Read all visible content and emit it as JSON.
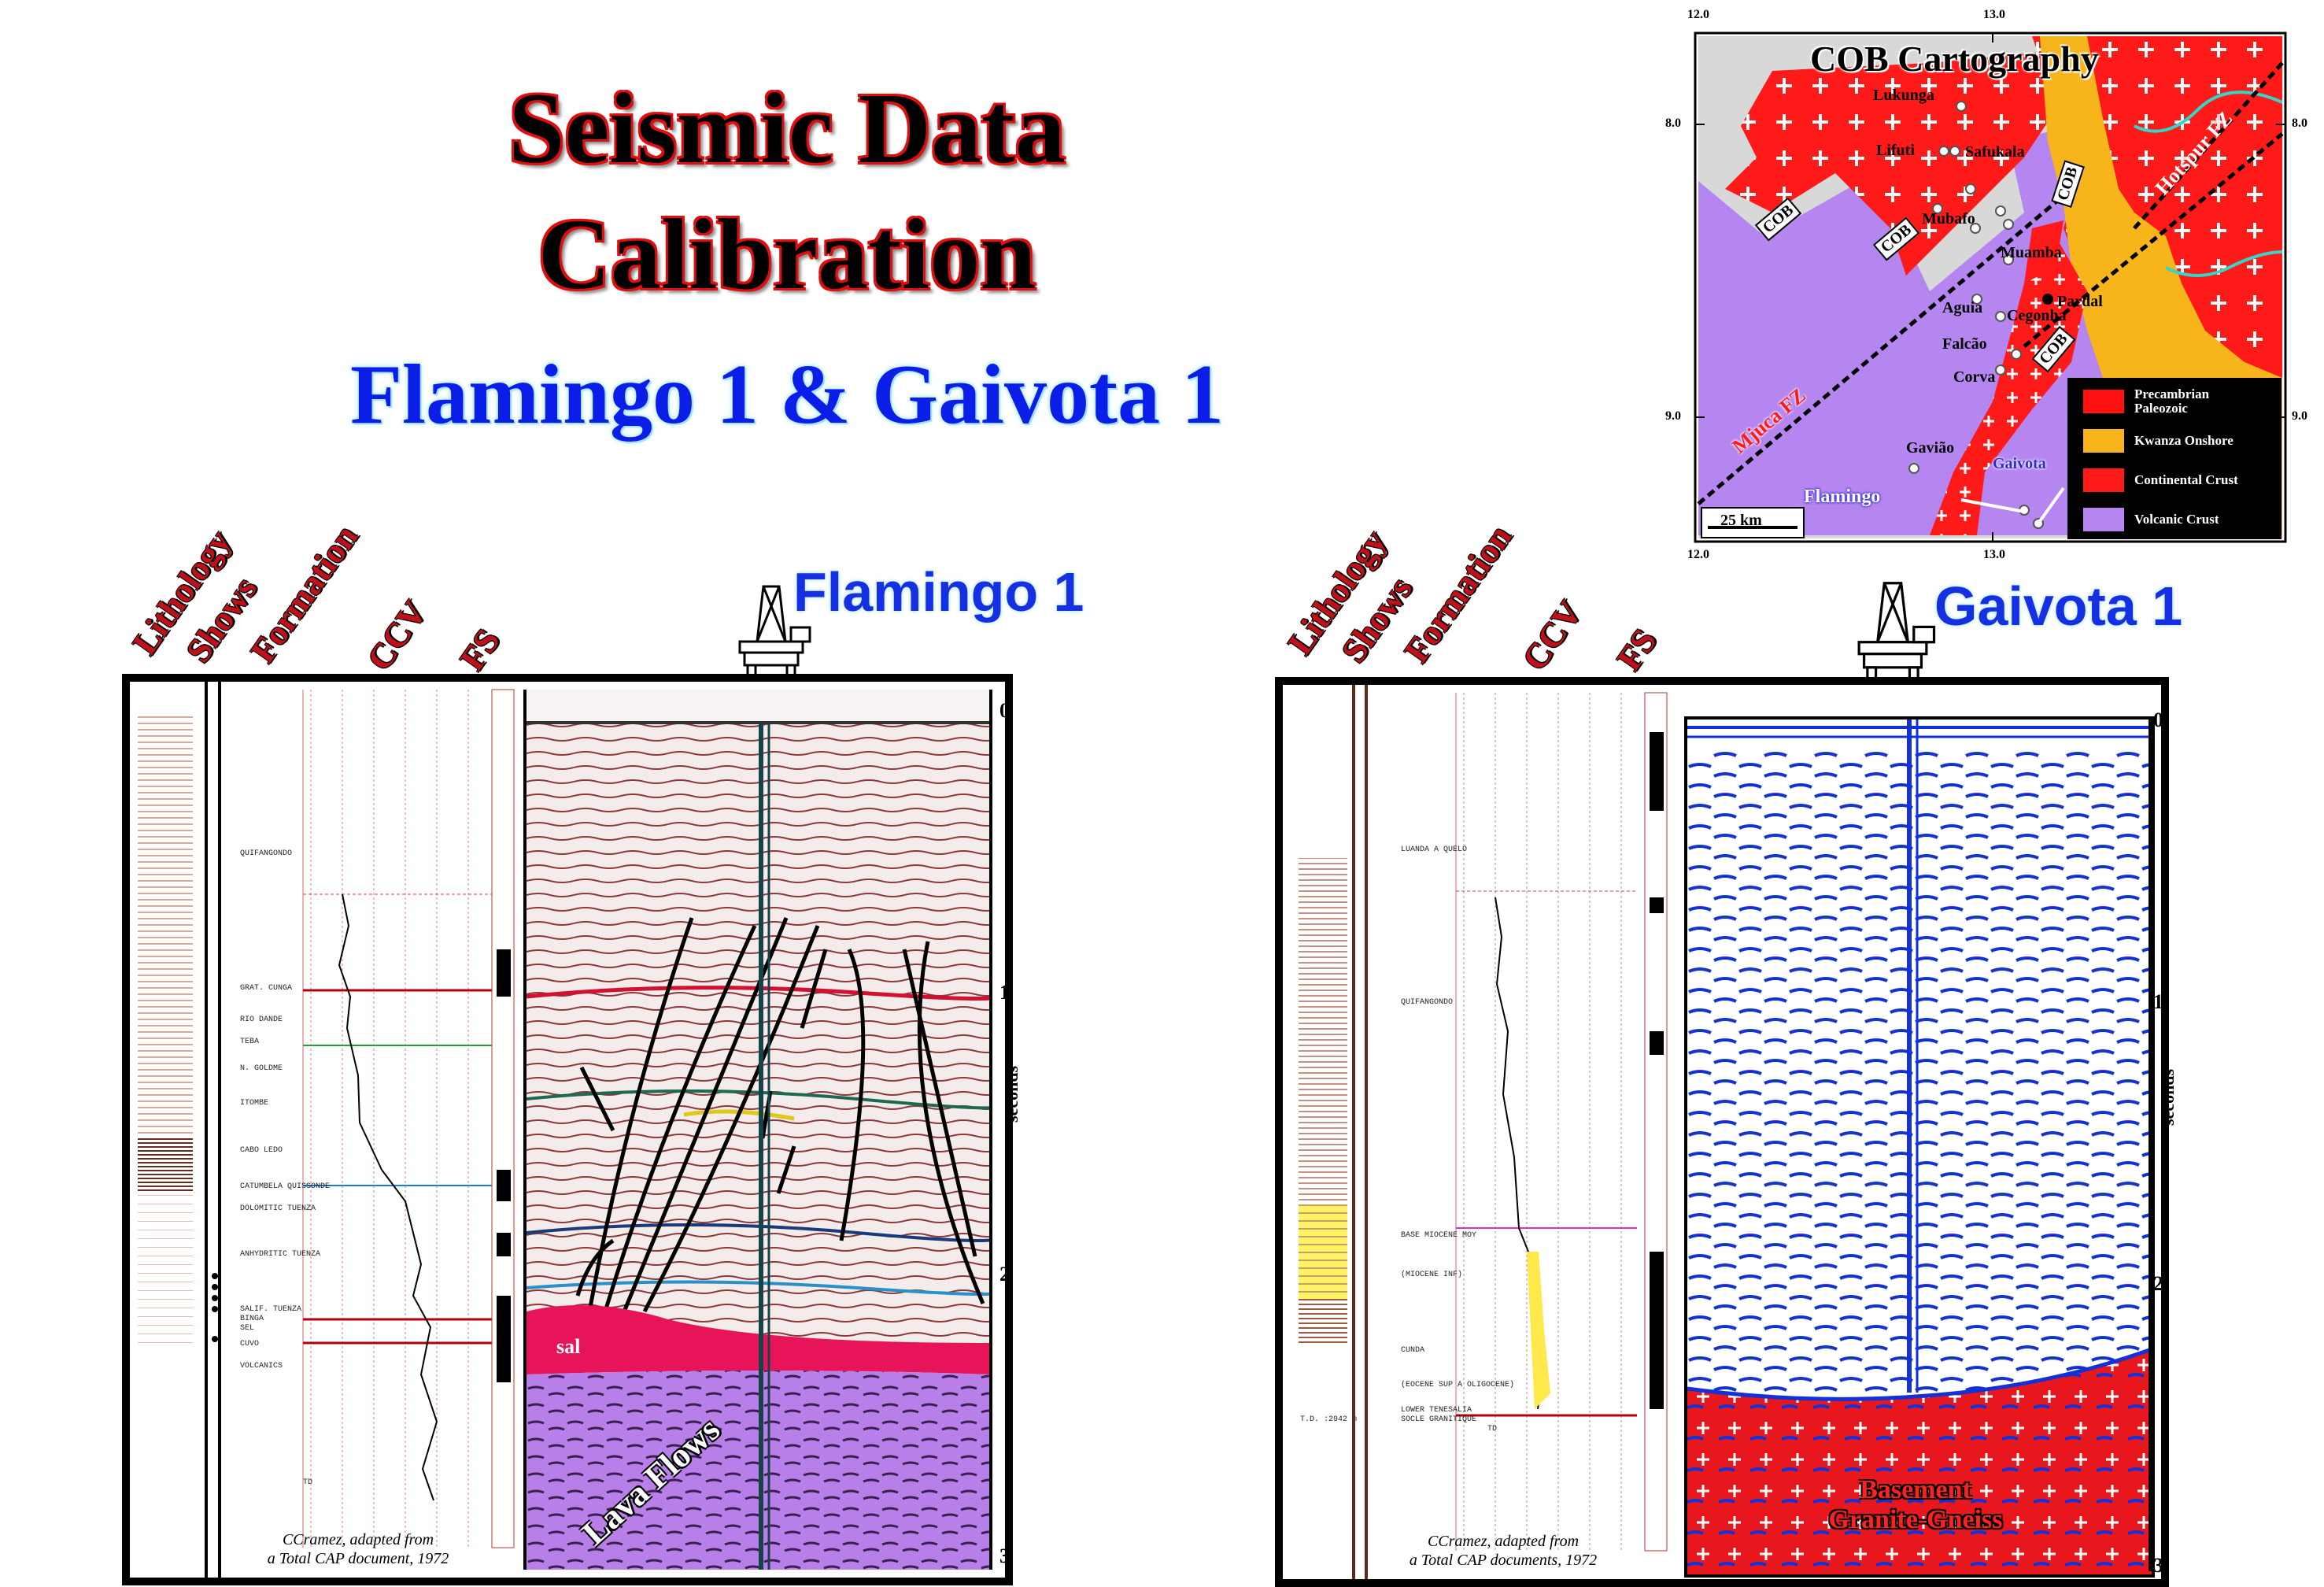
{
  "title_line1": "Seismic Data",
  "title_line2": "Calibration",
  "subtitle": "Flamingo  1 & Gaivota  1",
  "column_headers": [
    "Lithology",
    "Shows",
    "Formation",
    "CCV",
    "FS"
  ],
  "flamingo": {
    "title": "Flamingo  1",
    "credit_line1": "CCramez, adapted from",
    "credit_line2": "a Total CAP document, 1972",
    "ticks": [
      "0",
      "1",
      "2",
      "3"
    ],
    "seconds": "seconds",
    "sal_label": "sal",
    "lava_label": "Lava Flows",
    "formations": [
      "QUIFANGONDO",
      "GRAT. CUNGA",
      "RIO DANDE",
      "TEBA",
      "N. GOLDME",
      "ITOMBE",
      "CABO LEDO",
      "CATUMBELA QUISSONDE",
      "DOLOMITIC TUENZA",
      "ANHYDRITIC TUENZA",
      "SALIF. TUENZA",
      "BINGA",
      "SEL",
      "CUVO",
      "VOLCANICS",
      "TD"
    ]
  },
  "gaivota": {
    "title": "Gaivota  1",
    "credit_line1": "CCramez, adapted from",
    "credit_line2": "a Total CAP documents, 1972",
    "ticks": [
      "0",
      "1",
      "2",
      "3"
    ],
    "seconds": "seconds",
    "basement_line1": "Basement",
    "basement_line2": "Granite-Gneiss",
    "td_label": "T.D. :2942 m",
    "formations": [
      "LUANDA A QUELO",
      "QUIFANGONDO",
      "BASE MIOCENE MOY",
      "(MIOCENE INF)",
      "CUNDA",
      "(EOCENE SUP A OLIGOCENE)",
      "LOWER TENESALIA",
      "SOCLE GRANITIQUE",
      "TD"
    ]
  },
  "map": {
    "title": "COB Cartography",
    "top_coords": [
      "12.0",
      "13.0"
    ],
    "bottom_coords": [
      "12.0",
      "13.0"
    ],
    "left_coords": [
      "8.0",
      "9.0"
    ],
    "right_coords": [
      "8.0",
      "9.0"
    ],
    "scale": "25 km",
    "places": [
      "Lukunga",
      "Lifuti",
      "Safukala",
      "Mubafo",
      "Muamba",
      "Pardal",
      "Aguia",
      "Cegonha",
      "Falcão",
      "Corva",
      "Gavião",
      "Gaivota",
      "Flamingo"
    ],
    "cob_label": "COB",
    "fault_zones": [
      "Mjuca FZ",
      "Hotspur FZ"
    ],
    "legend": [
      {
        "label_line1": "Precambrian",
        "label_line2": "Paleozoic",
        "color": "#ff1010"
      },
      {
        "label_line1": "Kwanza Onshore",
        "label_line2": "",
        "color": "#f7b51b"
      },
      {
        "label_line1": "Continental Crust",
        "label_line2": "",
        "color": "#ff1a1a"
      },
      {
        "label_line1": "Volcanic Crust",
        "label_line2": "",
        "color": "#b586f0"
      }
    ]
  },
  "colors": {
    "title_outline": "#e01010",
    "subtitle_blue": "#0a1ee8",
    "salt": "#e8145a",
    "lava": "#b97fe8",
    "basement": "#e8171d",
    "seismic_blue": "#1232d8"
  }
}
